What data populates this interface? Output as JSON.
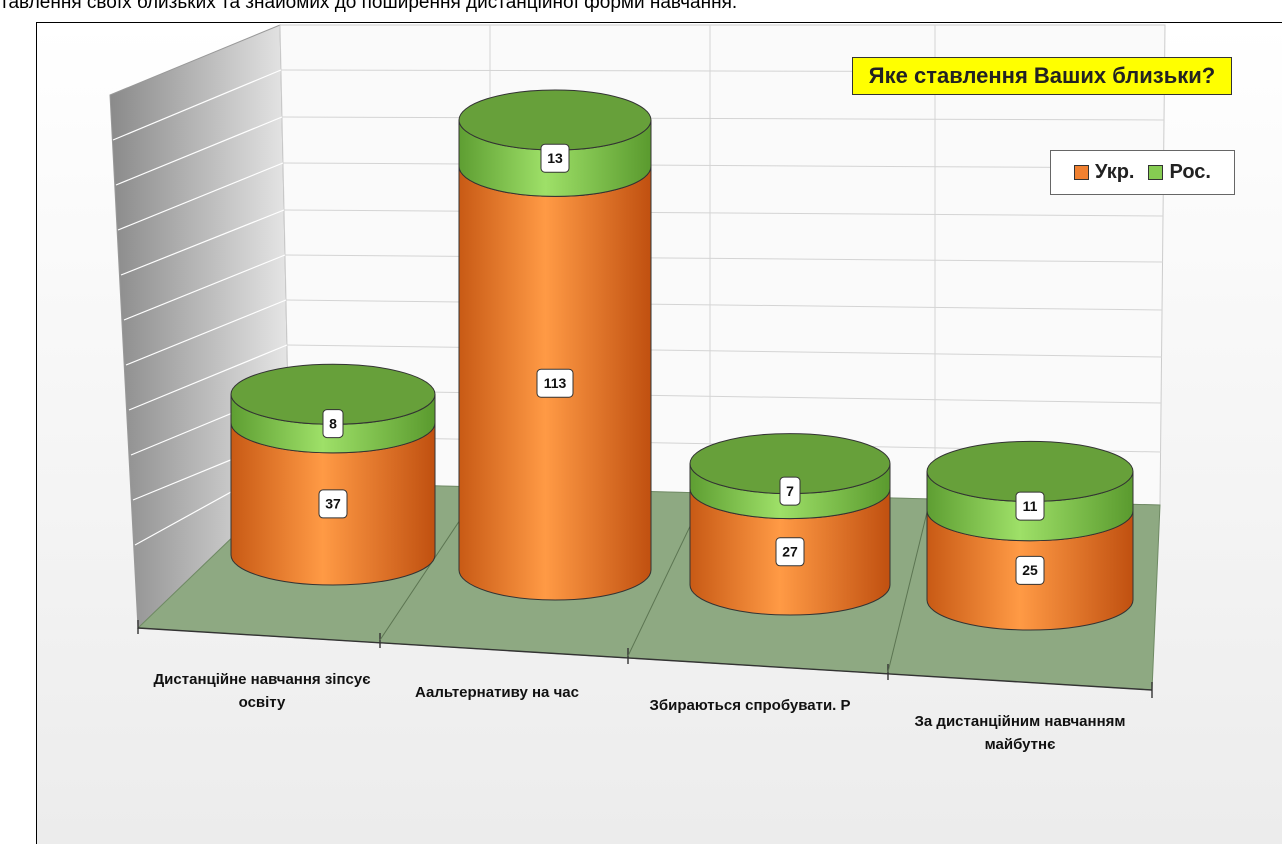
{
  "header_text": "тавлення своїх близьких та знайомих до поширення дистанційної форми навчання.",
  "chart_data": {
    "type": "bar",
    "stacked": true,
    "title": "Яке ставлення Ваших близьки?",
    "categories": [
      "Дистанційне навчання зіпсує освіту",
      "Аальтернативу  на час",
      "Збираються спробувати. Р",
      "За дистанційним навчанням майбутнє"
    ],
    "series": [
      {
        "name": "Укр.",
        "color": "#f08030",
        "values": [
          37,
          113,
          27,
          25
        ]
      },
      {
        "name": "Рос.",
        "color": "#86cc52",
        "values": [
          8,
          13,
          7,
          11
        ]
      }
    ],
    "legend": "top-right"
  }
}
